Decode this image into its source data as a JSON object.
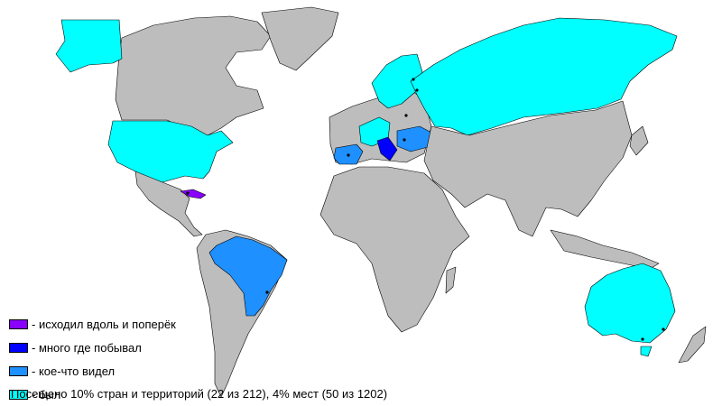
{
  "colors": {
    "land_default": "#bdbdbd",
    "border": "#000000",
    "background": "#ffffff"
  },
  "legend": [
    {
      "label": "- исходил вдоль и поперёк",
      "color": "#8a00ff"
    },
    {
      "label": "- много где побывал",
      "color": "#0000ff"
    },
    {
      "label": "- кое-что видел",
      "color": "#1e90ff"
    },
    {
      "label": "- был",
      "color": "#00ffff"
    }
  ],
  "summary": "Посещено 10% стран и территорий (22 из 212), 4% мест (50 из 1202)"
}
